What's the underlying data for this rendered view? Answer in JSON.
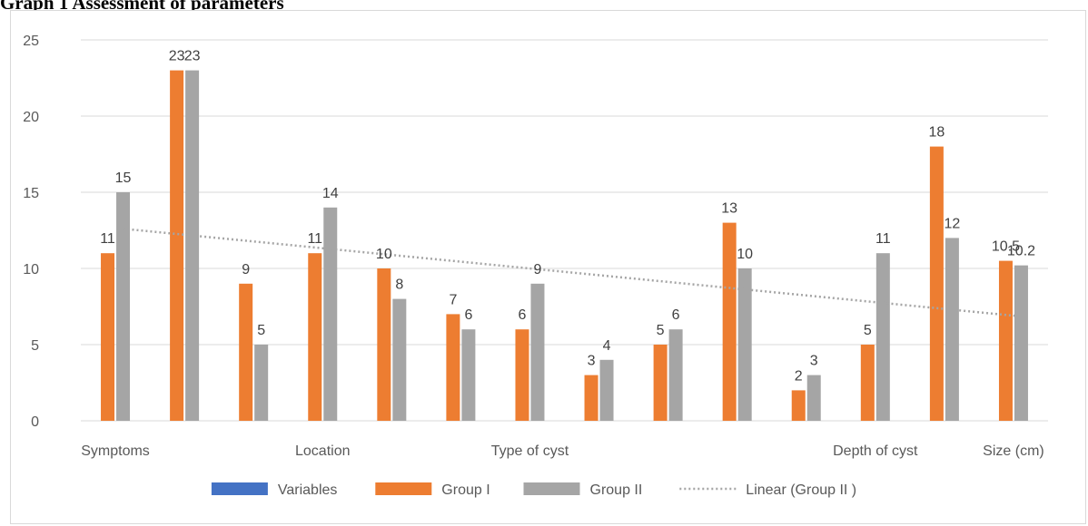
{
  "page_title": "Graph 1 Assessment of parameters",
  "chart_data": {
    "type": "bar",
    "categories": [
      "Symptoms",
      "",
      "",
      "Location",
      "",
      "",
      "Type of cyst",
      "",
      "",
      "",
      "",
      "Depth of cyst",
      "",
      "Size (cm)"
    ],
    "ylim": [
      0,
      25
    ],
    "y_ticks": [
      0,
      5,
      10,
      15,
      20,
      25
    ],
    "grid": true,
    "legend_position": "bottom",
    "series": [
      {
        "name": "Variables",
        "color": "#4472c4",
        "values": [
          null,
          null,
          null,
          null,
          null,
          null,
          null,
          null,
          null,
          null,
          null,
          null,
          null,
          null
        ],
        "labels": []
      },
      {
        "name": "Group I",
        "color": "#ed7d31",
        "values": [
          11,
          23,
          9,
          11,
          10,
          7,
          6,
          3,
          5,
          13,
          2,
          5,
          18,
          10.5
        ],
        "labels": [
          "11",
          "23",
          "9",
          "11",
          "10",
          "7",
          "6",
          "3",
          "5",
          "13",
          "2",
          "5",
          "18",
          "10.5"
        ]
      },
      {
        "name": "Group II",
        "color": "#a5a5a5",
        "values": [
          15,
          23,
          5,
          14,
          8,
          6,
          9,
          4,
          6,
          10,
          3,
          11,
          12,
          10.2
        ],
        "labels": [
          "15",
          "23",
          "5",
          "14",
          "8",
          "6",
          "9",
          "4",
          "6",
          "10",
          "3",
          "11",
          "12",
          "10.2"
        ]
      }
    ],
    "trendline": {
      "name": "Linear (Group II )",
      "type": "linear",
      "of_series": "Group II",
      "color": "#a5a5a5"
    }
  }
}
